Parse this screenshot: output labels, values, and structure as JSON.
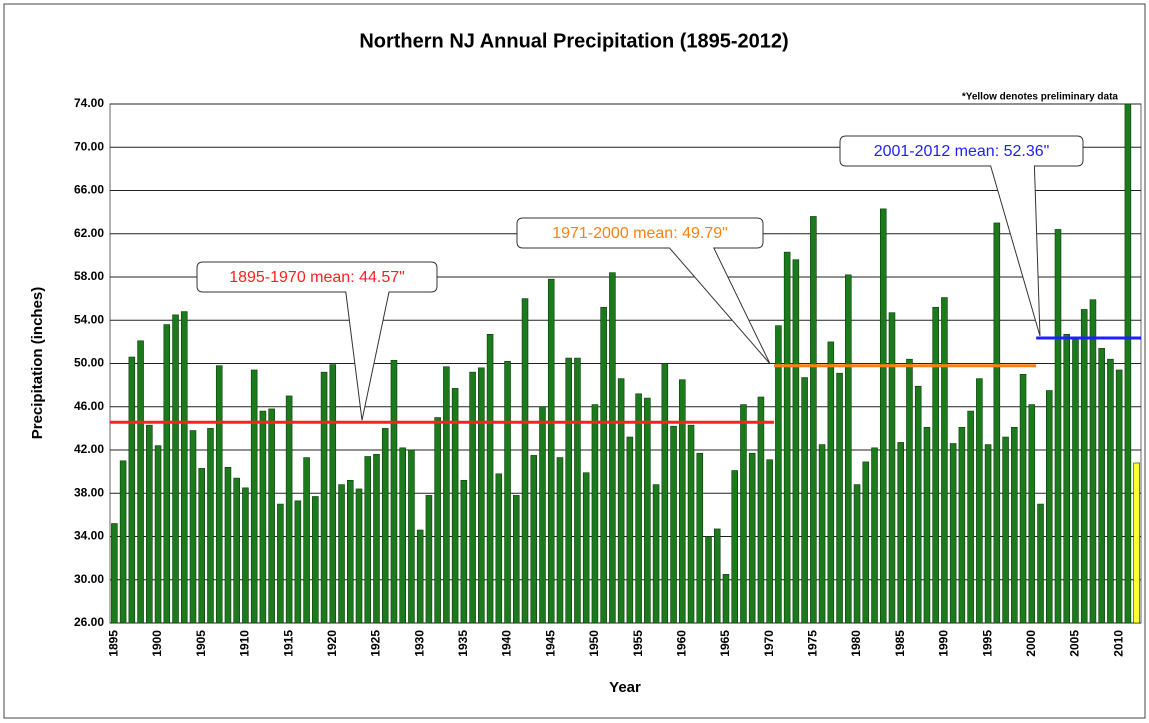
{
  "chart_data": {
    "type": "bar",
    "title": "Northern NJ Annual Precipitation (1895-2012)",
    "x_label": "Year",
    "y_label": "Precipitation (inches)",
    "note": "*Yellow denotes preliminary data",
    "categories": [
      "1895",
      null,
      null,
      null,
      null,
      "1900",
      null,
      null,
      null,
      null,
      "1905",
      null,
      null,
      null,
      null,
      "1910",
      null,
      null,
      null,
      null,
      "1915",
      null,
      null,
      null,
      null,
      "1920",
      null,
      null,
      null,
      null,
      "1925",
      null,
      null,
      null,
      null,
      "1930",
      null,
      null,
      null,
      null,
      "1935",
      null,
      null,
      null,
      null,
      "1940",
      null,
      null,
      null,
      null,
      "1945",
      null,
      null,
      null,
      null,
      "1950",
      null,
      null,
      null,
      null,
      "1955",
      null,
      null,
      null,
      null,
      "1960",
      null,
      null,
      null,
      null,
      "1965",
      null,
      null,
      null,
      null,
      "1970",
      null,
      null,
      null,
      null,
      "1975",
      null,
      null,
      null,
      null,
      "1980",
      null,
      null,
      null,
      null,
      "1985",
      null,
      null,
      null,
      null,
      "1990",
      null,
      null,
      null,
      null,
      "1995",
      null,
      null,
      null,
      null,
      "2000",
      null,
      null,
      null,
      null,
      "2005",
      null,
      null,
      null,
      null,
      "2010",
      null,
      null
    ],
    "values": [
      35.2,
      41.0,
      50.6,
      52.1,
      44.3,
      42.4,
      53.6,
      54.5,
      54.8,
      43.8,
      40.3,
      44.0,
      49.8,
      40.4,
      39.4,
      38.5,
      49.4,
      45.6,
      45.8,
      37.0,
      47.0,
      37.3,
      41.3,
      37.7,
      49.2,
      49.9,
      38.8,
      39.2,
      38.4,
      41.4,
      41.6,
      44.0,
      50.3,
      42.2,
      42.0,
      34.6,
      37.8,
      45.0,
      49.7,
      47.7,
      39.2,
      49.2,
      49.6,
      52.7,
      39.8,
      50.2,
      37.8,
      56.0,
      41.5,
      46.0,
      57.8,
      41.3,
      50.5,
      50.5,
      39.9,
      46.2,
      55.2,
      58.4,
      48.6,
      43.2,
      47.2,
      46.8,
      38.8,
      50.0,
      44.2,
      48.5,
      44.3,
      41.7,
      34.0,
      34.7,
      30.5,
      40.1,
      46.2,
      41.7,
      46.9,
      41.1,
      53.5,
      60.3,
      59.6,
      48.7,
      63.6,
      42.5,
      52.0,
      49.1,
      58.2,
      38.8,
      40.9,
      42.2,
      64.3,
      54.7,
      42.7,
      50.4,
      47.9,
      44.1,
      55.2,
      56.1,
      42.6,
      44.1,
      45.6,
      48.6,
      42.5,
      63.0,
      43.2,
      44.1,
      49.0,
      46.2,
      37.0,
      47.5,
      62.4,
      52.7,
      52.4,
      55.0,
      55.9,
      51.4,
      50.4,
      49.4,
      74.0,
      40.8
    ],
    "color": "#1c7a1c",
    "highlight": {
      "index": 117,
      "color": "#ffff33"
    },
    "ylim": [
      26,
      74
    ],
    "yticks": [
      {
        "value": 26,
        "label": "26.00"
      },
      {
        "value": 30,
        "label": "30.00"
      },
      {
        "value": 34,
        "label": "34.00"
      },
      {
        "value": 38,
        "label": "38.00"
      },
      {
        "value": 42,
        "label": "42.00"
      },
      {
        "value": 46,
        "label": "46.00"
      },
      {
        "value": 50,
        "label": "50.00"
      },
      {
        "value": 54,
        "label": "54.00"
      },
      {
        "value": 58,
        "label": "58.00"
      },
      {
        "value": 62,
        "label": "62.00"
      },
      {
        "value": 66,
        "label": "66.00"
      },
      {
        "value": 70,
        "label": "70.00"
      },
      {
        "value": 74,
        "label": "74.00"
      }
    ],
    "grid": true,
    "means": [
      {
        "label": "1895-1970 mean: 44.57\"",
        "value": 44.57,
        "from": 1895,
        "to": 1970,
        "color": "#ff2020"
      },
      {
        "label": "1971-2000 mean: 49.79\"",
        "value": 49.79,
        "from": 1971,
        "to": 2000,
        "color": "#ff7f10"
      },
      {
        "label": "2001-2012 mean: 52.36\"",
        "value": 52.36,
        "from": 2001,
        "to": 2012,
        "color": "#2020ff"
      }
    ]
  }
}
